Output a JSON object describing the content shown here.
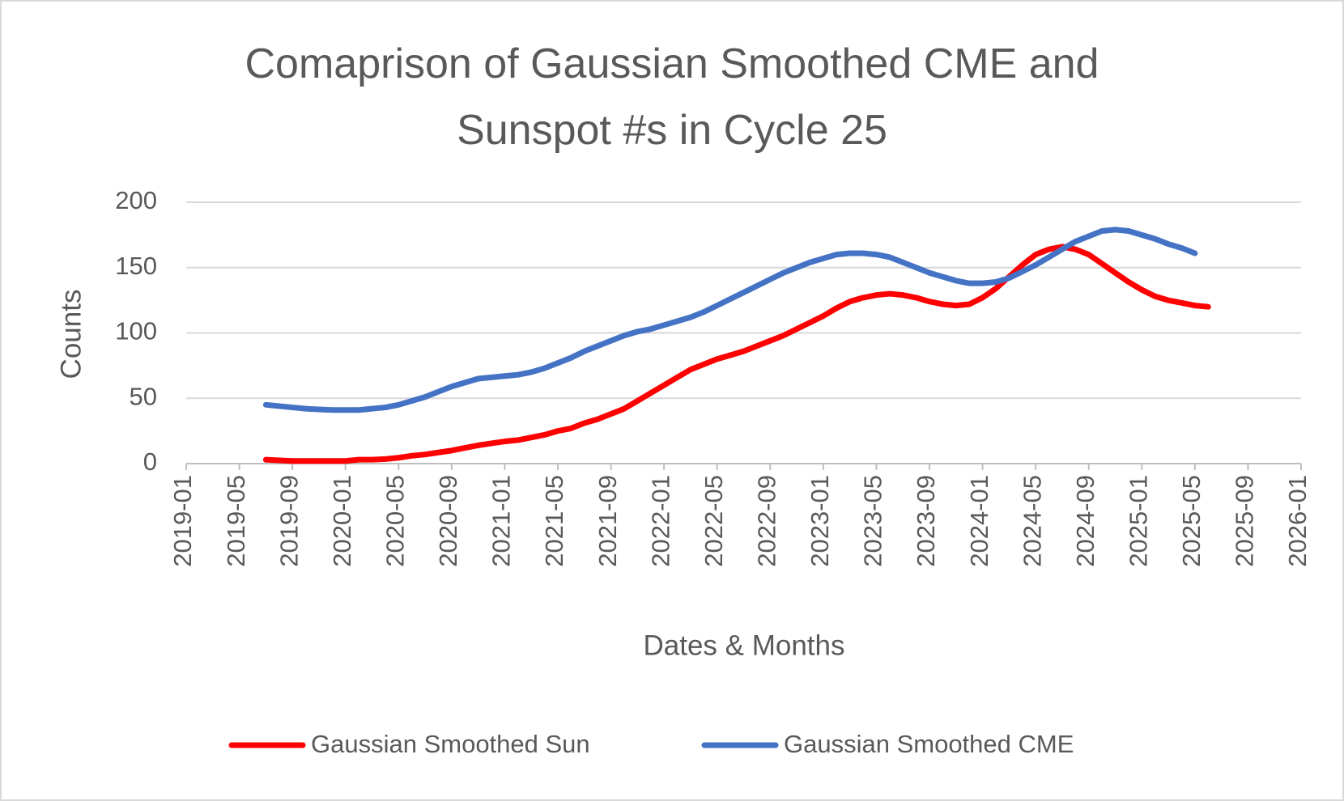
{
  "chart_data": {
    "type": "line",
    "title": "Comaprison of Gaussian Smoothed CME and Sunspot #s in Cycle 25",
    "x_label": "Dates & Months",
    "y_label": "Counts",
    "x": [
      "2019-07",
      "2019-08",
      "2019-09",
      "2019-10",
      "2019-11",
      "2019-12",
      "2020-01",
      "2020-02",
      "2020-03",
      "2020-04",
      "2020-05",
      "2020-06",
      "2020-07",
      "2020-08",
      "2020-09",
      "2020-10",
      "2020-11",
      "2020-12",
      "2021-01",
      "2021-02",
      "2021-03",
      "2021-04",
      "2021-05",
      "2021-06",
      "2021-07",
      "2021-08",
      "2021-09",
      "2021-10",
      "2021-11",
      "2021-12",
      "2022-01",
      "2022-02",
      "2022-03",
      "2022-04",
      "2022-05",
      "2022-06",
      "2022-07",
      "2022-08",
      "2022-09",
      "2022-10",
      "2022-11",
      "2022-12",
      "2023-01",
      "2023-02",
      "2023-03",
      "2023-04",
      "2023-05",
      "2023-06",
      "2023-07",
      "2023-08",
      "2023-09",
      "2023-10",
      "2023-11",
      "2023-12",
      "2024-01",
      "2024-02",
      "2024-03",
      "2024-04",
      "2024-05",
      "2024-06",
      "2024-07",
      "2024-08",
      "2024-09",
      "2024-10",
      "2024-11",
      "2024-12",
      "2025-01",
      "2025-02",
      "2025-03",
      "2025-04",
      "2025-05",
      "2025-06"
    ],
    "series": [
      {
        "name": "Gaussian Smoothed Sun",
        "color": "#ff0000",
        "values": [
          3,
          2.5,
          2,
          2,
          2,
          2,
          2,
          3,
          3,
          3.5,
          4.5,
          6,
          7,
          8.5,
          10,
          12,
          14,
          15.5,
          17,
          18,
          20,
          22,
          25,
          27,
          31,
          34,
          38,
          42,
          48,
          54,
          60,
          66,
          72,
          76,
          80,
          83,
          86,
          90,
          94,
          98,
          103,
          108,
          113,
          119,
          124,
          127,
          129,
          130,
          129,
          127,
          124,
          122,
          121,
          122,
          127,
          134,
          143,
          152,
          160,
          164,
          166,
          164,
          160,
          153,
          146,
          139,
          133,
          128,
          125,
          123,
          121,
          120
        ]
      },
      {
        "name": "Gaussian Smoothed CME",
        "color": "#4472c4",
        "values": [
          45,
          44,
          43,
          42,
          41.5,
          41,
          41,
          41,
          42,
          43,
          45,
          48,
          51,
          55,
          59,
          62,
          65,
          66,
          67,
          68,
          70,
          73,
          77,
          81,
          86,
          90,
          94,
          98,
          101,
          103,
          106,
          109,
          112,
          116,
          121,
          126,
          131,
          136,
          141,
          146,
          150,
          154,
          157,
          160,
          161,
          161,
          160,
          158,
          154,
          150,
          146,
          143,
          140,
          138,
          138,
          139,
          142,
          147,
          152,
          158,
          164,
          170,
          174,
          178,
          179,
          178,
          175,
          172,
          168,
          165,
          161,
          null
        ]
      }
    ],
    "xlim": [
      "2019-01",
      "2026-01"
    ],
    "xticks": [
      "2019-01",
      "2019-05",
      "2019-09",
      "2020-01",
      "2020-05",
      "2020-09",
      "2021-01",
      "2021-05",
      "2021-09",
      "2022-01",
      "2022-05",
      "2022-09",
      "2023-01",
      "2023-05",
      "2023-09",
      "2024-01",
      "2024-05",
      "2024-09",
      "2025-01",
      "2025-05",
      "2025-09",
      "2026-01"
    ],
    "ylim": [
      0,
      200
    ],
    "yticks": [
      0,
      50,
      100,
      150,
      200
    ],
    "grid": true,
    "legend": "bottom"
  }
}
